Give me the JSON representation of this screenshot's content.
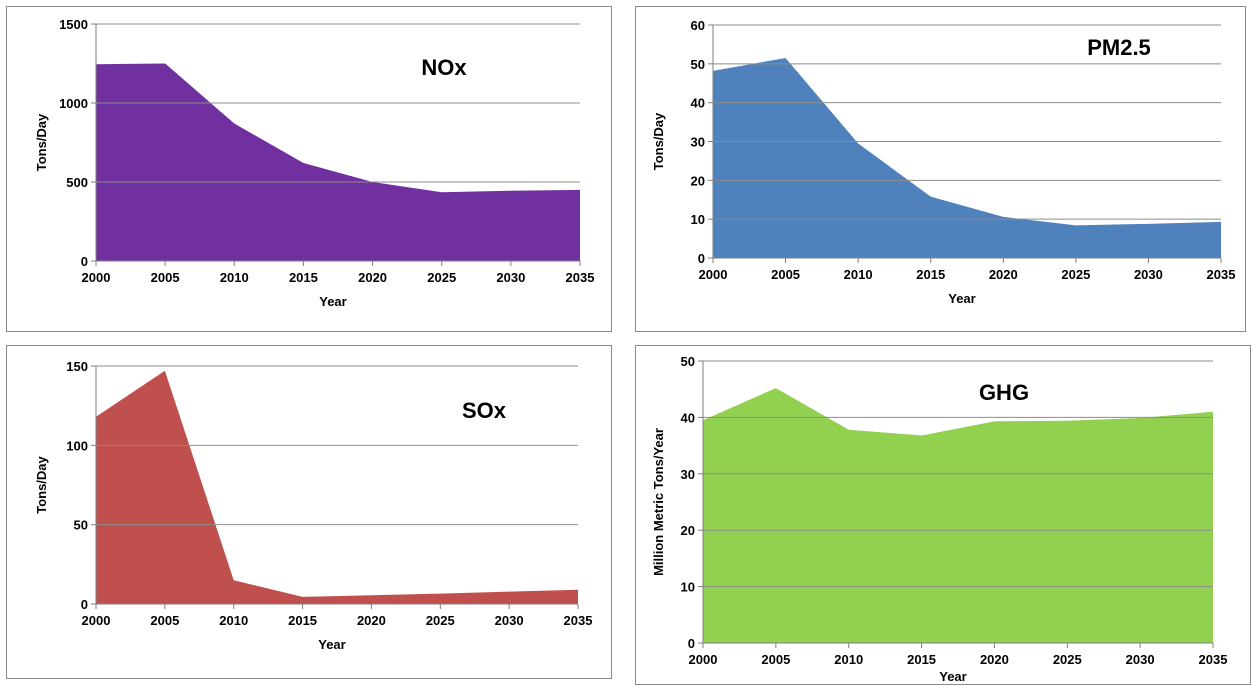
{
  "chart_data": [
    {
      "type": "area",
      "title": "NOx",
      "xlabel": "Year",
      "ylabel": "Tons/Day",
      "x": [
        2000,
        2005,
        2010,
        2015,
        2020,
        2025,
        2030,
        2035
      ],
      "series": [
        {
          "values": [
            1245,
            1250,
            870,
            620,
            500,
            435,
            445,
            450
          ]
        }
      ],
      "ylim": [
        0,
        1500
      ],
      "yticks": [
        0,
        500,
        1000,
        1500
      ],
      "grid": true,
      "color": "#7030A0"
    },
    {
      "type": "area",
      "title": "PM2.5",
      "xlabel": "Year",
      "ylabel": "Tons/Day",
      "x": [
        2000,
        2005,
        2010,
        2015,
        2020,
        2025,
        2030,
        2035
      ],
      "series": [
        {
          "values": [
            48.2,
            51.5,
            29.5,
            15.8,
            10.6,
            8.4,
            8.8,
            9.3
          ]
        }
      ],
      "ylim": [
        0,
        60
      ],
      "yticks": [
        0,
        10,
        20,
        30,
        40,
        50,
        60
      ],
      "grid": true,
      "color": "#4F81BD"
    },
    {
      "type": "area",
      "title": "SOx",
      "xlabel": "Year",
      "ylabel": "Tons/Day",
      "x": [
        2000,
        2005,
        2010,
        2015,
        2020,
        2025,
        2030,
        2035
      ],
      "series": [
        {
          "values": [
            118,
            147,
            15,
            4.5,
            5.5,
            6.5,
            7.8,
            9
          ]
        }
      ],
      "ylim": [
        0,
        150
      ],
      "yticks": [
        0,
        50,
        100,
        150
      ],
      "grid": true,
      "color": "#C0504D"
    },
    {
      "type": "area",
      "title": "GHG",
      "xlabel": "Year",
      "ylabel": "Million Metric Tons/Year",
      "x": [
        2000,
        2005,
        2010,
        2015,
        2020,
        2025,
        2030,
        2035
      ],
      "series": [
        {
          "values": [
            39.5,
            45.2,
            37.8,
            36.8,
            39.3,
            39.4,
            39.9,
            41.0
          ]
        }
      ],
      "ylim": [
        0,
        50
      ],
      "yticks": [
        0,
        10,
        20,
        30,
        40,
        50
      ],
      "grid": true,
      "color": "#92D050"
    }
  ]
}
